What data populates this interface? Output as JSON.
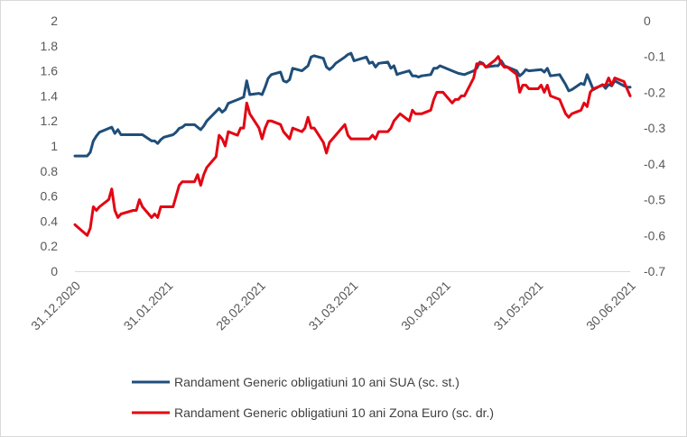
{
  "chart_data": {
    "type": "line",
    "title": "",
    "xlabel": "",
    "ylabel": "",
    "x_tick_labels": [
      "31.12.2020",
      "31.01.2021",
      "28.02.2021",
      "31.03.2021",
      "30.04.2021",
      "31.05.2021",
      "30.06.2021"
    ],
    "x_range": [
      "2020-12-31",
      "2021-06-30"
    ],
    "y_left": {
      "range": [
        0,
        2
      ],
      "step": 0.2,
      "tick_labels": [
        "0",
        "0.2",
        "0.4",
        "0.6",
        "0.8",
        "1",
        "1.2",
        "1.4",
        "1.6",
        "1.8",
        "2"
      ]
    },
    "y_right": {
      "range": [
        -0.7,
        0
      ],
      "step": 0.1,
      "tick_labels": [
        "-0.7",
        "-0.6",
        "-0.5",
        "-0.4",
        "-0.3",
        "-0.2",
        "-0.1",
        "0"
      ]
    },
    "grid": false,
    "legend_position": "bottom",
    "series": [
      {
        "name": "Randament Generic obligatiuni 10 ani SUA (sc. st.)",
        "axis": "left",
        "color": "#1f4e79",
        "points": [
          [
            "2020-12-31",
            0.92
          ],
          [
            "2021-01-04",
            0.92
          ],
          [
            "2021-01-05",
            0.95
          ],
          [
            "2021-01-06",
            1.04
          ],
          [
            "2021-01-07",
            1.08
          ],
          [
            "2021-01-08",
            1.11
          ],
          [
            "2021-01-11",
            1.14
          ],
          [
            "2021-01-12",
            1.15
          ],
          [
            "2021-01-13",
            1.1
          ],
          [
            "2021-01-14",
            1.13
          ],
          [
            "2021-01-15",
            1.09
          ],
          [
            "2021-01-19",
            1.09
          ],
          [
            "2021-01-20",
            1.09
          ],
          [
            "2021-01-22",
            1.09
          ],
          [
            "2021-01-25",
            1.04
          ],
          [
            "2021-01-26",
            1.04
          ],
          [
            "2021-01-27",
            1.02
          ],
          [
            "2021-01-28",
            1.05
          ],
          [
            "2021-01-29",
            1.07
          ],
          [
            "2021-02-01",
            1.09
          ],
          [
            "2021-02-02",
            1.11
          ],
          [
            "2021-02-03",
            1.14
          ],
          [
            "2021-02-04",
            1.15
          ],
          [
            "2021-02-05",
            1.17
          ],
          [
            "2021-02-08",
            1.17
          ],
          [
            "2021-02-09",
            1.15
          ],
          [
            "2021-02-10",
            1.13
          ],
          [
            "2021-02-11",
            1.16
          ],
          [
            "2021-02-12",
            1.2
          ],
          [
            "2021-02-16",
            1.3
          ],
          [
            "2021-02-17",
            1.27
          ],
          [
            "2021-02-18",
            1.29
          ],
          [
            "2021-02-19",
            1.34
          ],
          [
            "2021-02-22",
            1.37
          ],
          [
            "2021-02-23",
            1.38
          ],
          [
            "2021-02-24",
            1.39
          ],
          [
            "2021-02-25",
            1.52
          ],
          [
            "2021-02-26",
            1.41
          ],
          [
            "2021-03-01",
            1.42
          ],
          [
            "2021-03-02",
            1.41
          ],
          [
            "2021-03-03",
            1.47
          ],
          [
            "2021-03-04",
            1.54
          ],
          [
            "2021-03-05",
            1.57
          ],
          [
            "2021-03-08",
            1.59
          ],
          [
            "2021-03-09",
            1.52
          ],
          [
            "2021-03-10",
            1.51
          ],
          [
            "2021-03-11",
            1.53
          ],
          [
            "2021-03-12",
            1.62
          ],
          [
            "2021-03-15",
            1.6
          ],
          [
            "2021-03-16",
            1.62
          ],
          [
            "2021-03-17",
            1.64
          ],
          [
            "2021-03-18",
            1.71
          ],
          [
            "2021-03-19",
            1.72
          ],
          [
            "2021-03-22",
            1.7
          ],
          [
            "2021-03-23",
            1.63
          ],
          [
            "2021-03-24",
            1.61
          ],
          [
            "2021-03-25",
            1.63
          ],
          [
            "2021-03-26",
            1.66
          ],
          [
            "2021-03-29",
            1.71
          ],
          [
            "2021-03-30",
            1.73
          ],
          [
            "2021-03-31",
            1.74
          ],
          [
            "2021-04-01",
            1.68
          ],
          [
            "2021-04-05",
            1.71
          ],
          [
            "2021-04-06",
            1.66
          ],
          [
            "2021-04-07",
            1.67
          ],
          [
            "2021-04-08",
            1.63
          ],
          [
            "2021-04-09",
            1.66
          ],
          [
            "2021-04-12",
            1.67
          ],
          [
            "2021-04-13",
            1.62
          ],
          [
            "2021-04-14",
            1.64
          ],
          [
            "2021-04-15",
            1.57
          ],
          [
            "2021-04-16",
            1.58
          ],
          [
            "2021-04-19",
            1.6
          ],
          [
            "2021-04-20",
            1.56
          ],
          [
            "2021-04-21",
            1.56
          ],
          [
            "2021-04-22",
            1.55
          ],
          [
            "2021-04-23",
            1.56
          ],
          [
            "2021-04-26",
            1.57
          ],
          [
            "2021-04-27",
            1.62
          ],
          [
            "2021-04-28",
            1.62
          ],
          [
            "2021-04-29",
            1.64
          ],
          [
            "2021-04-30",
            1.63
          ],
          [
            "2021-05-03",
            1.6
          ],
          [
            "2021-05-05",
            1.58
          ],
          [
            "2021-05-07",
            1.57
          ],
          [
            "2021-05-10",
            1.6
          ],
          [
            "2021-05-11",
            1.62
          ],
          [
            "2021-05-12",
            1.67
          ],
          [
            "2021-05-13",
            1.66
          ],
          [
            "2021-05-14",
            1.63
          ],
          [
            "2021-05-17",
            1.64
          ],
          [
            "2021-05-18",
            1.64
          ],
          [
            "2021-05-19",
            1.68
          ],
          [
            "2021-05-20",
            1.64
          ],
          [
            "2021-05-21",
            1.63
          ],
          [
            "2021-05-24",
            1.6
          ],
          [
            "2021-05-25",
            1.56
          ],
          [
            "2021-05-26",
            1.58
          ],
          [
            "2021-05-27",
            1.61
          ],
          [
            "2021-05-28",
            1.6
          ],
          [
            "2021-06-01",
            1.61
          ],
          [
            "2021-06-02",
            1.59
          ],
          [
            "2021-06-03",
            1.62
          ],
          [
            "2021-06-04",
            1.56
          ],
          [
            "2021-06-07",
            1.57
          ],
          [
            "2021-06-08",
            1.53
          ],
          [
            "2021-06-09",
            1.49
          ],
          [
            "2021-06-10",
            1.44
          ],
          [
            "2021-06-11",
            1.45
          ],
          [
            "2021-06-14",
            1.5
          ],
          [
            "2021-06-15",
            1.49
          ],
          [
            "2021-06-16",
            1.57
          ],
          [
            "2021-06-17",
            1.51
          ],
          [
            "2021-06-18",
            1.45
          ],
          [
            "2021-06-21",
            1.49
          ],
          [
            "2021-06-22",
            1.46
          ],
          [
            "2021-06-23",
            1.49
          ],
          [
            "2021-06-24",
            1.48
          ],
          [
            "2021-06-25",
            1.52
          ],
          [
            "2021-06-28",
            1.48
          ],
          [
            "2021-06-29",
            1.47
          ],
          [
            "2021-06-30",
            1.47
          ]
        ]
      },
      {
        "name": "Randament Generic obligatiuni 10 ani Zona Euro (sc. dr.)",
        "axis": "right",
        "color": "#e30613",
        "points": [
          [
            "2020-12-31",
            -0.57
          ],
          [
            "2021-01-04",
            -0.6
          ],
          [
            "2021-01-05",
            -0.58
          ],
          [
            "2021-01-06",
            -0.52
          ],
          [
            "2021-01-07",
            -0.53
          ],
          [
            "2021-01-08",
            -0.52
          ],
          [
            "2021-01-11",
            -0.5
          ],
          [
            "2021-01-12",
            -0.47
          ],
          [
            "2021-01-13",
            -0.53
          ],
          [
            "2021-01-14",
            -0.55
          ],
          [
            "2021-01-15",
            -0.54
          ],
          [
            "2021-01-19",
            -0.53
          ],
          [
            "2021-01-20",
            -0.53
          ],
          [
            "2021-01-21",
            -0.5
          ],
          [
            "2021-01-22",
            -0.52
          ],
          [
            "2021-01-25",
            -0.55
          ],
          [
            "2021-01-26",
            -0.54
          ],
          [
            "2021-01-27",
            -0.55
          ],
          [
            "2021-01-28",
            -0.52
          ],
          [
            "2021-01-29",
            -0.52
          ],
          [
            "2021-02-01",
            -0.52
          ],
          [
            "2021-02-02",
            -0.49
          ],
          [
            "2021-02-03",
            -0.46
          ],
          [
            "2021-02-04",
            -0.45
          ],
          [
            "2021-02-05",
            -0.45
          ],
          [
            "2021-02-08",
            -0.45
          ],
          [
            "2021-02-09",
            -0.43
          ],
          [
            "2021-02-10",
            -0.46
          ],
          [
            "2021-02-11",
            -0.43
          ],
          [
            "2021-02-12",
            -0.41
          ],
          [
            "2021-02-15",
            -0.38
          ],
          [
            "2021-02-16",
            -0.32
          ],
          [
            "2021-02-17",
            -0.33
          ],
          [
            "2021-02-18",
            -0.35
          ],
          [
            "2021-02-19",
            -0.31
          ],
          [
            "2021-02-22",
            -0.32
          ],
          [
            "2021-02-23",
            -0.3
          ],
          [
            "2021-02-24",
            -0.3
          ],
          [
            "2021-02-25",
            -0.23
          ],
          [
            "2021-02-26",
            -0.26
          ],
          [
            "2021-03-01",
            -0.3
          ],
          [
            "2021-03-02",
            -0.33
          ],
          [
            "2021-03-03",
            -0.3
          ],
          [
            "2021-03-04",
            -0.28
          ],
          [
            "2021-03-05",
            -0.28
          ],
          [
            "2021-03-08",
            -0.29
          ],
          [
            "2021-03-09",
            -0.31
          ],
          [
            "2021-03-10",
            -0.32
          ],
          [
            "2021-03-11",
            -0.33
          ],
          [
            "2021-03-12",
            -0.3
          ],
          [
            "2021-03-15",
            -0.31
          ],
          [
            "2021-03-16",
            -0.3
          ],
          [
            "2021-03-17",
            -0.27
          ],
          [
            "2021-03-18",
            -0.3
          ],
          [
            "2021-03-19",
            -0.3
          ],
          [
            "2021-03-22",
            -0.34
          ],
          [
            "2021-03-23",
            -0.37
          ],
          [
            "2021-03-24",
            -0.34
          ],
          [
            "2021-03-25",
            -0.33
          ],
          [
            "2021-03-26",
            -0.32
          ],
          [
            "2021-03-29",
            -0.29
          ],
          [
            "2021-03-30",
            -0.32
          ],
          [
            "2021-03-31",
            -0.33
          ],
          [
            "2021-04-01",
            -0.33
          ],
          [
            "2021-04-06",
            -0.33
          ],
          [
            "2021-04-07",
            -0.32
          ],
          [
            "2021-04-08",
            -0.33
          ],
          [
            "2021-04-09",
            -0.31
          ],
          [
            "2021-04-12",
            -0.31
          ],
          [
            "2021-04-13",
            -0.3
          ],
          [
            "2021-04-14",
            -0.28
          ],
          [
            "2021-04-15",
            -0.27
          ],
          [
            "2021-04-16",
            -0.26
          ],
          [
            "2021-04-19",
            -0.28
          ],
          [
            "2021-04-20",
            -0.25
          ],
          [
            "2021-04-21",
            -0.26
          ],
          [
            "2021-04-22",
            -0.26
          ],
          [
            "2021-04-23",
            -0.26
          ],
          [
            "2021-04-26",
            -0.25
          ],
          [
            "2021-04-27",
            -0.22
          ],
          [
            "2021-04-28",
            -0.2
          ],
          [
            "2021-04-29",
            -0.2
          ],
          [
            "2021-04-30",
            -0.2
          ],
          [
            "2021-05-03",
            -0.23
          ],
          [
            "2021-05-04",
            -0.22
          ],
          [
            "2021-05-05",
            -0.22
          ],
          [
            "2021-05-06",
            -0.21
          ],
          [
            "2021-05-07",
            -0.21
          ],
          [
            "2021-05-10",
            -0.16
          ],
          [
            "2021-05-11",
            -0.12
          ],
          [
            "2021-05-12",
            -0.12
          ],
          [
            "2021-05-13",
            -0.12
          ],
          [
            "2021-05-14",
            -0.13
          ],
          [
            "2021-05-17",
            -0.11
          ],
          [
            "2021-05-18",
            -0.1
          ],
          [
            "2021-05-19",
            -0.12
          ],
          [
            "2021-05-20",
            -0.13
          ],
          [
            "2021-05-21",
            -0.13
          ],
          [
            "2021-05-24",
            -0.15
          ],
          [
            "2021-05-25",
            -0.2
          ],
          [
            "2021-05-26",
            -0.18
          ],
          [
            "2021-05-27",
            -0.18
          ],
          [
            "2021-05-28",
            -0.19
          ],
          [
            "2021-05-31",
            -0.19
          ],
          [
            "2021-06-01",
            -0.18
          ],
          [
            "2021-06-02",
            -0.2
          ],
          [
            "2021-06-03",
            -0.18
          ],
          [
            "2021-06-04",
            -0.21
          ],
          [
            "2021-06-07",
            -0.22
          ],
          [
            "2021-06-08",
            -0.24
          ],
          [
            "2021-06-09",
            -0.26
          ],
          [
            "2021-06-10",
            -0.27
          ],
          [
            "2021-06-11",
            -0.26
          ],
          [
            "2021-06-14",
            -0.25
          ],
          [
            "2021-06-15",
            -0.23
          ],
          [
            "2021-06-16",
            -0.24
          ],
          [
            "2021-06-17",
            -0.2
          ],
          [
            "2021-06-18",
            -0.19
          ],
          [
            "2021-06-21",
            -0.18
          ],
          [
            "2021-06-22",
            -0.18
          ],
          [
            "2021-06-23",
            -0.16
          ],
          [
            "2021-06-24",
            -0.18
          ],
          [
            "2021-06-25",
            -0.16
          ],
          [
            "2021-06-28",
            -0.17
          ],
          [
            "2021-06-29",
            -0.19
          ],
          [
            "2021-06-30",
            -0.21
          ]
        ]
      }
    ]
  }
}
